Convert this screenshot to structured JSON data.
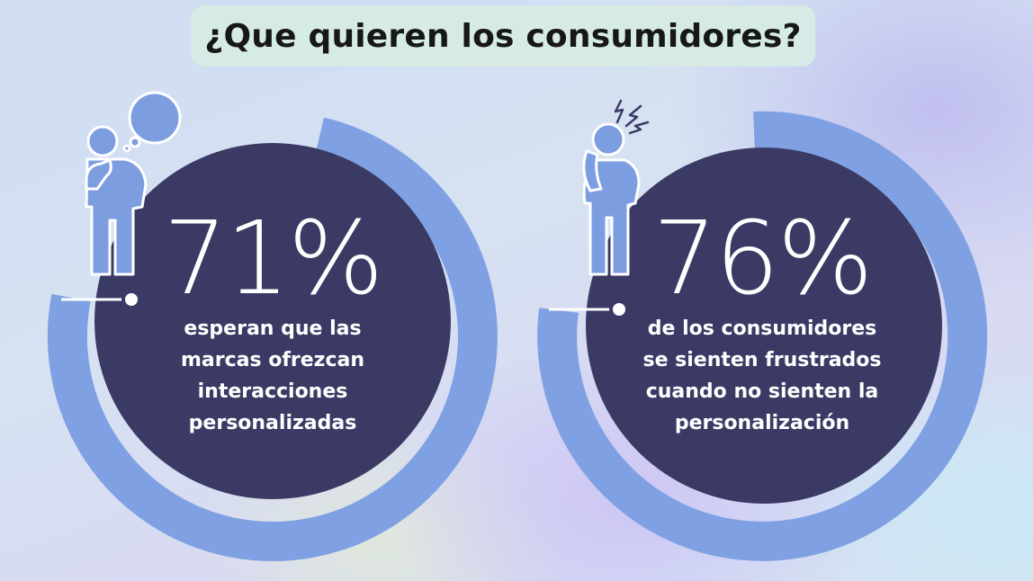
{
  "title": "¿Que quieren los consumidores?",
  "stats": [
    {
      "value": "71%",
      "lines": [
        "esperan que las",
        "marcas ofrezcan",
        "interacciones",
        "personalizadas"
      ]
    },
    {
      "value": "76%",
      "lines": [
        "de los consumidores",
        "se sienten frustrados",
        "cuando no sienten  la",
        "personalización"
      ]
    }
  ],
  "colors": {
    "ring": "#7fa1e3",
    "disc": "#3b3a65",
    "figure": "#7d9de1",
    "title_bg": "#d6ebe6"
  },
  "icons": [
    "thinking-person-icon",
    "speech-bubble-icon",
    "frustrated-person-icon",
    "lightning-icon"
  ]
}
